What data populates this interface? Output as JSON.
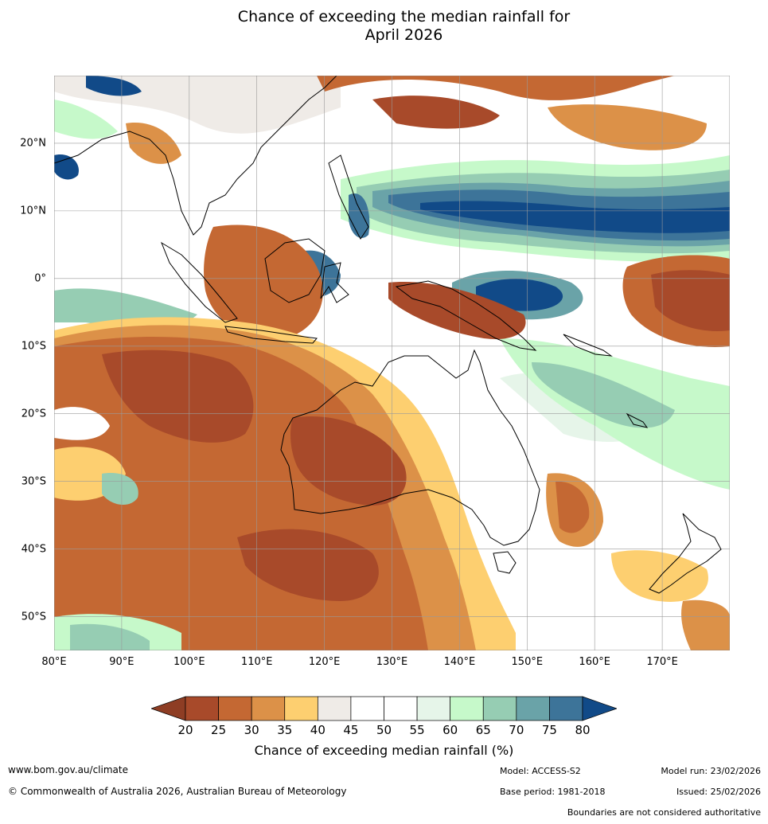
{
  "title_line1": "Chance of exceeding the median rainfall for",
  "title_line2": "April 2026",
  "map": {
    "lat_labels": [
      "20°N",
      "10°N",
      "0°",
      "10°S",
      "20°S",
      "30°S",
      "40°S",
      "50°S"
    ],
    "lat_values": [
      20,
      10,
      0,
      -10,
      -20,
      -30,
      -40,
      -50
    ],
    "lon_labels": [
      "80°E",
      "90°E",
      "100°E",
      "110°E",
      "120°E",
      "130°E",
      "140°E",
      "150°E",
      "160°E",
      "170°E"
    ],
    "lon_values": [
      80,
      90,
      100,
      110,
      120,
      130,
      140,
      150,
      160,
      170
    ],
    "lon_range": [
      80,
      180
    ],
    "lat_range": [
      -55,
      30
    ]
  },
  "colorbar": {
    "ticks": [
      "20",
      "25",
      "30",
      "35",
      "40",
      "45",
      "50",
      "55",
      "60",
      "65",
      "70",
      "75",
      "80"
    ],
    "colors": [
      "#8e3d24",
      "#a84a2a",
      "#c46833",
      "#dc9148",
      "#fdcf70",
      "#efebe7",
      "#ffffff",
      "#ffffff",
      "#e6f5e9",
      "#c6f9ca",
      "#96cdb3",
      "#6aa3a8",
      "#3d7499",
      "#114a88"
    ],
    "label": "Chance of exceeding median rainfall (%)"
  },
  "footer": {
    "website": "www.bom.gov.au/climate",
    "copyright": "© Commonwealth of Australia 2026, Australian Bureau of Meteorology",
    "model": "Model: ACCESS-S2",
    "base_period": "Base period: 1981-2018",
    "model_run": "Model run: 23/02/2026",
    "issued": "Issued: 25/02/2026",
    "disclaimer": "Boundaries are not considered authoritative"
  }
}
